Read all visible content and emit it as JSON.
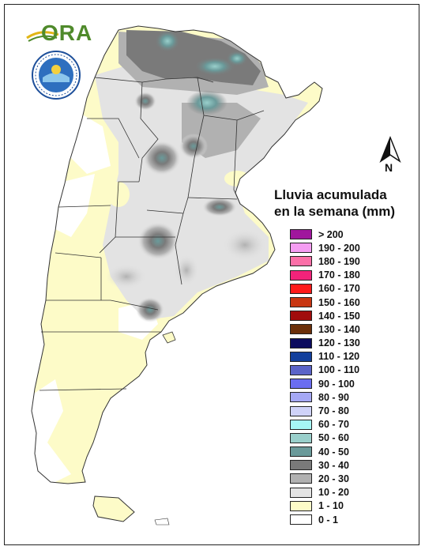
{
  "logo": {
    "text": "ORA"
  },
  "north_arrow": {
    "label": "N"
  },
  "legend": {
    "title_line1": "Lluvia acumulada",
    "title_line2": "en la semana (mm)",
    "classes": [
      {
        "label": "> 200",
        "color": "#a0179d"
      },
      {
        "label": "190 - 200",
        "color": "#f59df2"
      },
      {
        "label": "180 - 190",
        "color": "#fb6fa8"
      },
      {
        "label": "170 - 180",
        "color": "#f2237a"
      },
      {
        "label": "160 - 170",
        "color": "#ff1a1a"
      },
      {
        "label": "150 - 160",
        "color": "#c83612"
      },
      {
        "label": "140 - 150",
        "color": "#a10c0c"
      },
      {
        "label": "130 - 140",
        "color": "#6b2f0a"
      },
      {
        "label": "120 - 130",
        "color": "#0b0b5e"
      },
      {
        "label": "110 - 120",
        "color": "#123f9c"
      },
      {
        "label": "100 - 110",
        "color": "#5b64c8"
      },
      {
        "label": "90 - 100",
        "color": "#6a6df0"
      },
      {
        "label": "80 - 90",
        "color": "#a5a8f5"
      },
      {
        "label": "70 - 80",
        "color": "#cfd2f8"
      },
      {
        "label": "60 - 70",
        "color": "#a6f7f5"
      },
      {
        "label": "50 - 60",
        "color": "#99cfcb"
      },
      {
        "label": "40 - 50",
        "color": "#6a9a9a"
      },
      {
        "label": "30 - 40",
        "color": "#7a7a7a"
      },
      {
        "label": "20 - 30",
        "color": "#b1b1b1"
      },
      {
        "label": "10 - 20",
        "color": "#e3e3e3"
      },
      {
        "label": "1 - 10",
        "color": "#fdfbc8"
      },
      {
        "label": "0 - 1",
        "color": "#ffffff"
      }
    ]
  }
}
